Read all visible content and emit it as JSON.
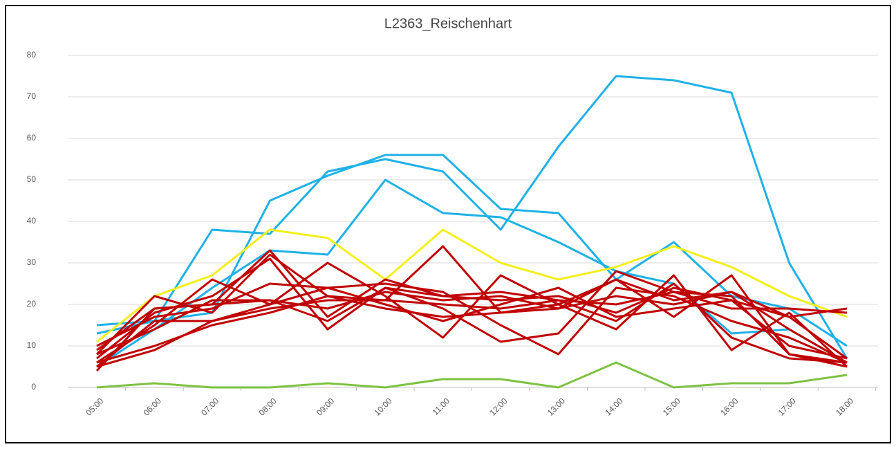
{
  "chart_data": {
    "type": "line",
    "title": "L2363_Reischenhart",
    "categories": [
      "05:00",
      "06:00",
      "07:00",
      "08:00",
      "09:00",
      "10:00",
      "11:00",
      "12:00",
      "13:00",
      "14:00",
      "15:00",
      "16:00",
      "17:00",
      "18:00"
    ],
    "ylim": [
      0,
      80
    ],
    "yticks": [
      0,
      10,
      20,
      30,
      40,
      50,
      60,
      70,
      80
    ],
    "grid": true,
    "series": [
      {
        "color": "#1fb1e6",
        "values": [
          13,
          16,
          38,
          37,
          52,
          55,
          52,
          38,
          58,
          75,
          74,
          71,
          30,
          7
        ]
      },
      {
        "color": "#1fb1e6",
        "values": [
          15,
          16,
          18,
          45,
          51,
          56,
          56,
          43,
          42,
          26,
          35,
          22,
          19,
          10
        ]
      },
      {
        "color": "#1fb1e6",
        "values": [
          5,
          14,
          24,
          33,
          32,
          50,
          42,
          41,
          35,
          28,
          25,
          13,
          14,
          6
        ]
      },
      {
        "color": "#f5ef1a",
        "values": [
          11,
          22,
          27,
          38,
          36,
          26,
          38,
          30,
          26,
          29,
          34,
          29,
          22,
          17
        ]
      },
      {
        "color": "#c00000",
        "values": [
          8,
          22,
          18,
          32,
          22,
          21,
          34,
          18,
          20,
          14,
          27,
          9,
          18,
          5
        ]
      },
      {
        "color": "#c00000",
        "values": [
          6,
          15,
          26,
          20,
          30,
          22,
          12,
          27,
          20,
          26,
          17,
          27,
          8,
          6
        ]
      },
      {
        "color": "#c00000",
        "values": [
          4,
          19,
          20,
          33,
          17,
          26,
          22,
          23,
          21,
          16,
          25,
          12,
          7,
          6
        ]
      },
      {
        "color": "#c00000",
        "values": [
          7,
          18,
          22,
          31,
          14,
          24,
          19,
          11,
          13,
          28,
          23,
          22,
          8,
          5
        ]
      },
      {
        "color": "#c00000",
        "values": [
          5,
          16,
          16,
          20,
          24,
          25,
          23,
          15,
          8,
          24,
          22,
          16,
          12,
          6
        ]
      },
      {
        "color": "#c00000",
        "values": [
          10,
          17,
          19,
          25,
          24,
          20,
          16,
          20,
          24,
          17,
          19,
          21,
          17,
          19
        ]
      },
      {
        "color": "#c00000",
        "values": [
          6,
          10,
          15,
          18,
          22,
          19,
          17,
          18,
          19,
          22,
          20,
          23,
          17,
          7
        ]
      },
      {
        "color": "#c00000",
        "values": [
          5,
          9,
          16,
          19,
          21,
          21,
          20,
          19,
          21,
          20,
          23,
          19,
          19,
          18
        ]
      },
      {
        "color": "#c00000",
        "values": [
          8,
          14,
          21,
          21,
          19,
          23,
          21,
          22,
          19,
          26,
          21,
          23,
          14,
          6
        ]
      },
      {
        "color": "#c00000",
        "values": [
          9,
          19,
          20,
          21,
          16,
          24,
          22,
          21,
          22,
          18,
          24,
          21,
          10,
          7
        ]
      },
      {
        "color": "#7dc242",
        "values": [
          0,
          1,
          0,
          0,
          1,
          0,
          2,
          2,
          0,
          6,
          0,
          1,
          1,
          3
        ]
      }
    ]
  }
}
